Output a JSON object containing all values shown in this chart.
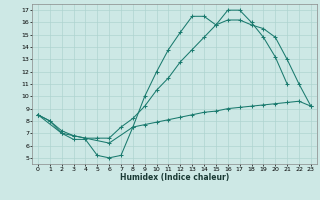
{
  "xlabel": "Humidex (Indice chaleur)",
  "x_ticks": [
    0,
    1,
    2,
    3,
    4,
    5,
    6,
    7,
    8,
    9,
    10,
    11,
    12,
    13,
    14,
    15,
    16,
    17,
    18,
    19,
    20,
    21,
    22,
    23
  ],
  "y_ticks": [
    5,
    6,
    7,
    8,
    9,
    10,
    11,
    12,
    13,
    14,
    15,
    16,
    17
  ],
  "xlim": [
    -0.5,
    23.5
  ],
  "ylim": [
    4.5,
    17.5
  ],
  "bg_color": "#cde8e5",
  "grid_color": "#afd4d0",
  "line_color": "#1a7a6e",
  "curve1_x": [
    0,
    1,
    2,
    3,
    4,
    5,
    6,
    7,
    8,
    9,
    10,
    11,
    12,
    13,
    14,
    15,
    16,
    17,
    18,
    19,
    20,
    21
  ],
  "curve1_y": [
    8.5,
    8.0,
    7.0,
    6.5,
    6.5,
    5.2,
    5.0,
    5.2,
    7.5,
    10.0,
    12.0,
    13.8,
    15.2,
    16.5,
    16.5,
    15.8,
    17.0,
    17.0,
    16.0,
    14.8,
    13.2,
    11.0
  ],
  "curve2_x": [
    0,
    1,
    2,
    3,
    4,
    5,
    6,
    7,
    8,
    9,
    10,
    11,
    12,
    13,
    14,
    15,
    16,
    17,
    18,
    19,
    20,
    21,
    22,
    23
  ],
  "curve2_y": [
    8.5,
    8.0,
    7.2,
    6.8,
    6.6,
    6.6,
    6.6,
    7.5,
    8.2,
    9.2,
    10.5,
    11.5,
    12.8,
    13.8,
    14.8,
    15.8,
    16.2,
    16.2,
    15.8,
    15.5,
    14.8,
    13.0,
    11.0,
    9.2
  ],
  "curve3_x": [
    0,
    2,
    3,
    6,
    8,
    9,
    10,
    11,
    12,
    13,
    14,
    15,
    16,
    17,
    18,
    19,
    20,
    21,
    22,
    23
  ],
  "curve3_y": [
    8.5,
    7.0,
    6.8,
    6.2,
    7.5,
    7.7,
    7.9,
    8.1,
    8.3,
    8.5,
    8.7,
    8.8,
    9.0,
    9.1,
    9.2,
    9.3,
    9.4,
    9.5,
    9.6,
    9.2
  ]
}
